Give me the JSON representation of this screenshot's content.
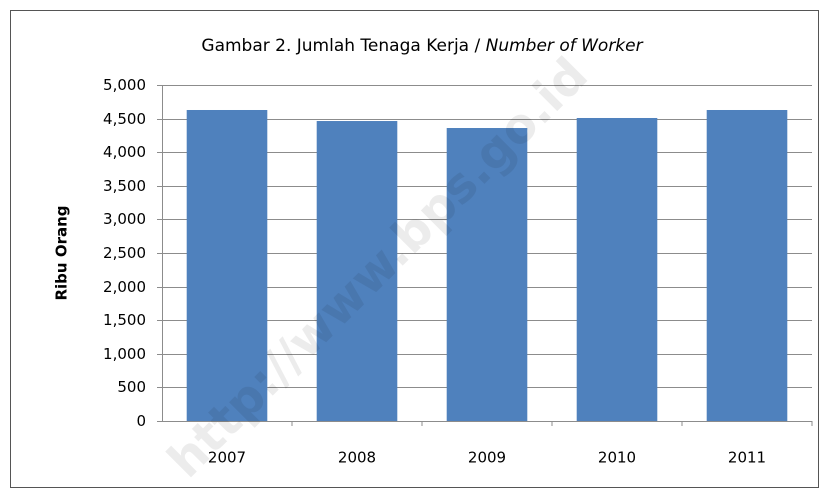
{
  "chart_data": {
    "type": "bar",
    "title": [
      "Gambar 2. Jumlah Tenaga Kerja / ",
      "Number of Worker"
    ],
    "y_label": "Ribu Orang",
    "watermark": "http://www.bps.go.id",
    "categories": [
      "2007",
      "2008",
      "2009",
      "2010",
      "2011"
    ],
    "values": [
      4628,
      4464,
      4360,
      4509,
      4628
    ],
    "color": "#4f81bd",
    "ylim": [
      0,
      5000
    ],
    "yticks": [
      0,
      500,
      {
        "value": 1000,
        "label": "1,000"
      },
      {
        "value": 1500,
        "label": "1,500"
      },
      {
        "value": 2000,
        "label": "2,000"
      },
      {
        "value": 2500,
        "label": "2,500"
      },
      {
        "value": 3000,
        "label": "3,000"
      },
      {
        "value": 3500,
        "label": "3,500"
      },
      {
        "value": 4000,
        "label": "4,000"
      },
      {
        "value": 4500,
        "label": "4,500"
      },
      {
        "value": 5000,
        "label": "5,000"
      }
    ],
    "grid": true
  }
}
